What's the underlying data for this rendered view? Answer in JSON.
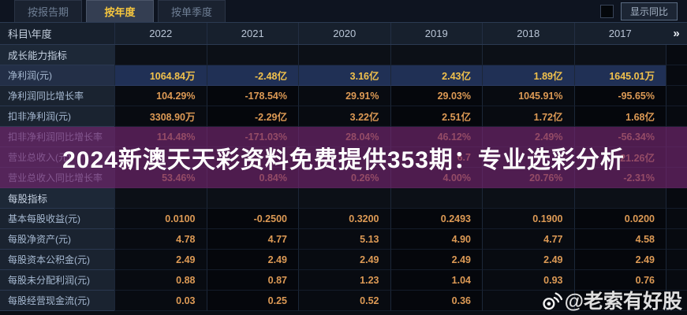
{
  "tabs": [
    {
      "label": "按报告期",
      "active": false
    },
    {
      "label": "按年度",
      "active": true
    },
    {
      "label": "按单季度",
      "active": false
    }
  ],
  "controls": {
    "compare_checkbox_checked": false,
    "compare_label": "显示同比"
  },
  "table": {
    "corner_label": "科目\\年度",
    "years": [
      "2022",
      "2021",
      "2020",
      "2019",
      "2018",
      "2017"
    ],
    "more_label": "»",
    "rows": [
      {
        "type": "section",
        "label": "成长能力指标",
        "values": [
          "",
          "",
          "",
          "",
          "",
          ""
        ]
      },
      {
        "type": "highlight",
        "label": "净利润(元)",
        "values": [
          "1064.84万",
          "-2.48亿",
          "3.16亿",
          "2.43亿",
          "1.89亿",
          "1645.01万"
        ]
      },
      {
        "type": "data",
        "label": "净利润同比增长率",
        "values": [
          "104.29%",
          "-178.54%",
          "29.91%",
          "29.03%",
          "1045.91%",
          "-95.65%"
        ]
      },
      {
        "type": "data",
        "label": "扣非净利润(元)",
        "values": [
          "3308.90万",
          "-2.29亿",
          "3.22亿",
          "2.51亿",
          "1.72亿",
          "1.68亿"
        ]
      },
      {
        "type": "data",
        "label": "扣非净利润同比增长率",
        "values": [
          "114.48%",
          "-171.03%",
          "28.04%",
          "46.12%",
          "2.49%",
          "-56.34%"
        ]
      },
      {
        "type": "data",
        "label": "营业总收入(元)",
        "values": [
          "",
          "",
          "",
          "6.7",
          "",
          "21.26亿"
        ]
      },
      {
        "type": "data",
        "label": "营业总收入同比增长率",
        "values": [
          "53.46%",
          "0.84%",
          "0.26%",
          "4.00%",
          "20.76%",
          "-2.31%"
        ]
      },
      {
        "type": "section",
        "label": "每股指标",
        "values": [
          "",
          "",
          "",
          "",
          "",
          ""
        ]
      },
      {
        "type": "data",
        "label": "基本每股收益(元)",
        "values": [
          "0.0100",
          "-0.2500",
          "0.3200",
          "0.2493",
          "0.1900",
          "0.0200"
        ]
      },
      {
        "type": "data",
        "label": "每股净资产(元)",
        "values": [
          "4.78",
          "4.77",
          "5.13",
          "4.90",
          "4.77",
          "4.58"
        ]
      },
      {
        "type": "data",
        "label": "每股资本公积金(元)",
        "values": [
          "2.49",
          "2.49",
          "2.49",
          "2.49",
          "2.49",
          "2.49"
        ]
      },
      {
        "type": "data",
        "label": "每股未分配利润(元)",
        "values": [
          "0.88",
          "0.87",
          "1.23",
          "1.04",
          "0.93",
          "0.76"
        ]
      },
      {
        "type": "data",
        "label": "每股经营现金流(元)",
        "values": [
          "0.03",
          "0.25",
          "0.52",
          "0.36",
          "",
          ""
        ]
      }
    ]
  },
  "watermarks": {
    "banner_text": "2024新澳天天彩资料免费提供353期：专业选彩分析",
    "weibo_handle": "@老索有好股"
  },
  "colors": {
    "accent_gold": "#f6c63e",
    "value_orange": "#dd9a55",
    "highlight_row_bg": "#203055",
    "banner_purple": "#71266e",
    "header_bg": "#17202d"
  }
}
